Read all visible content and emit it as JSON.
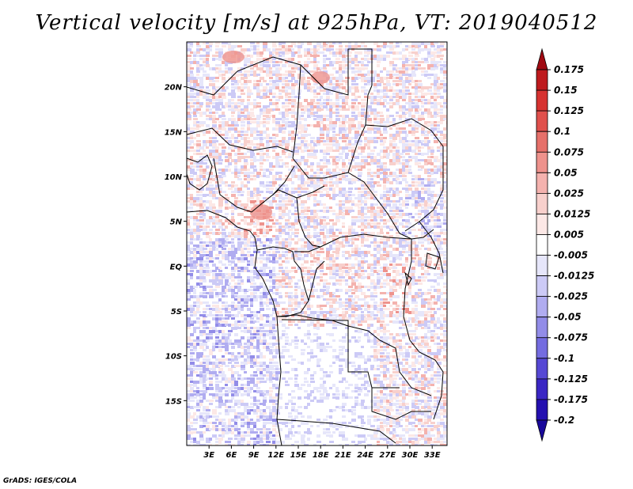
{
  "title": "Vertical velocity [m/s] at 925hPa, VT: 2019040512",
  "credit": "GrADS: IGES/COLA",
  "map": {
    "lon_range": [
      0,
      35
    ],
    "lat_range": [
      -20,
      25
    ],
    "lon_ticks": [
      {
        "v": 3,
        "label": "3E"
      },
      {
        "v": 6,
        "label": "6E"
      },
      {
        "v": 9,
        "label": "9E"
      },
      {
        "v": 12,
        "label": "12E"
      },
      {
        "v": 15,
        "label": "15E"
      },
      {
        "v": 18,
        "label": "18E"
      },
      {
        "v": 21,
        "label": "21E"
      },
      {
        "v": 24,
        "label": "24E"
      },
      {
        "v": 27,
        "label": "27E"
      },
      {
        "v": 30,
        "label": "30E"
      },
      {
        "v": 33,
        "label": "33E"
      }
    ],
    "lat_ticks": [
      {
        "v": 20,
        "label": "20N"
      },
      {
        "v": 15,
        "label": "15N"
      },
      {
        "v": 10,
        "label": "10N"
      },
      {
        "v": 5,
        "label": "5N"
      },
      {
        "v": 0,
        "label": "EQ"
      },
      {
        "v": -5,
        "label": "5S"
      },
      {
        "v": -10,
        "label": "10S"
      },
      {
        "v": -15,
        "label": "15S"
      }
    ]
  },
  "colorbar": {
    "levels": [
      "0.175",
      "0.15",
      "0.125",
      "0.1",
      "0.075",
      "0.05",
      "0.025",
      "0.0125",
      "0.005",
      "-0.005",
      "-0.0125",
      "-0.025",
      "-0.05",
      "-0.075",
      "-0.1",
      "-0.125",
      "-0.175",
      "-0.2"
    ],
    "colors": [
      "#a00a12",
      "#be1a1e",
      "#d63230",
      "#e0504c",
      "#e6706a",
      "#ee928c",
      "#f4b2ae",
      "#f8d0cc",
      "#fce8e6",
      "#ffffff",
      "#e6e6fa",
      "#cccaf6",
      "#b0acf0",
      "#928ce8",
      "#746ce0",
      "#5648d4",
      "#3a26c4",
      "#2410b0",
      "#18089a"
    ]
  }
}
